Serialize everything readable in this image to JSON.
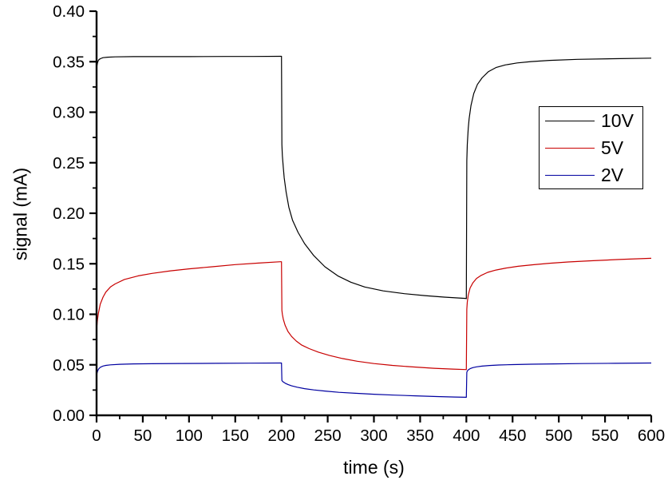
{
  "chart_data": {
    "type": "line",
    "title": "",
    "xlabel": "time (s)",
    "ylabel": "signal (mA)",
    "xlim": [
      0,
      600
    ],
    "ylim": [
      0.0,
      0.4
    ],
    "x_major_ticks": [
      0,
      50,
      100,
      150,
      200,
      250,
      300,
      350,
      400,
      450,
      500,
      550,
      600
    ],
    "x_minor_step": 25,
    "y_major_ticks": [
      0.0,
      0.05,
      0.1,
      0.15,
      0.2,
      0.25,
      0.3,
      0.35,
      0.4
    ],
    "y_minor_step": 0.025,
    "y_tick_decimals": 2,
    "grid": false,
    "axis_color": "#000000",
    "background_color": "#ffffff",
    "legend": {
      "position": "upper right",
      "border": true,
      "entries": [
        {
          "label": "10V",
          "color": "#000000"
        },
        {
          "label": "5V",
          "color": "#c80000"
        },
        {
          "label": "2V",
          "color": "#0000a0"
        }
      ]
    },
    "series": [
      {
        "name": "10V",
        "color": "#000000",
        "points": [
          [
            0,
            0.344
          ],
          [
            1,
            0.349
          ],
          [
            2,
            0.3515
          ],
          [
            4,
            0.353
          ],
          [
            7,
            0.354
          ],
          [
            12,
            0.3545
          ],
          [
            20,
            0.3548
          ],
          [
            40,
            0.355
          ],
          [
            70,
            0.355
          ],
          [
            100,
            0.355
          ],
          [
            140,
            0.3552
          ],
          [
            170,
            0.3552
          ],
          [
            199,
            0.3553
          ],
          [
            200,
            0.3553
          ],
          [
            200.5,
            0.268
          ],
          [
            201,
            0.257
          ],
          [
            202,
            0.245
          ],
          [
            203,
            0.235
          ],
          [
            205,
            0.221
          ],
          [
            208,
            0.206
          ],
          [
            212,
            0.193
          ],
          [
            218,
            0.181
          ],
          [
            225,
            0.17
          ],
          [
            235,
            0.158
          ],
          [
            247,
            0.147
          ],
          [
            261,
            0.138
          ],
          [
            275,
            0.1318
          ],
          [
            290,
            0.127
          ],
          [
            310,
            0.1232
          ],
          [
            333,
            0.1204
          ],
          [
            355,
            0.1185
          ],
          [
            376,
            0.117
          ],
          [
            399,
            0.1157
          ],
          [
            400,
            0.1155
          ],
          [
            400.5,
            0.252
          ],
          [
            401,
            0.268
          ],
          [
            402,
            0.284
          ],
          [
            403,
            0.2935
          ],
          [
            405,
            0.3065
          ],
          [
            408,
            0.3185
          ],
          [
            412,
            0.3275
          ],
          [
            417,
            0.334
          ],
          [
            424,
            0.3402
          ],
          [
            432,
            0.3442
          ],
          [
            442,
            0.3468
          ],
          [
            455,
            0.3488
          ],
          [
            470,
            0.3501
          ],
          [
            490,
            0.3513
          ],
          [
            520,
            0.3523
          ],
          [
            560,
            0.353
          ],
          [
            600,
            0.3535
          ]
        ]
      },
      {
        "name": "5V",
        "color": "#c80000",
        "points": [
          [
            0,
            0.085
          ],
          [
            1,
            0.095
          ],
          [
            2,
            0.101
          ],
          [
            4,
            0.11
          ],
          [
            7,
            0.117
          ],
          [
            10,
            0.122
          ],
          [
            15,
            0.127
          ],
          [
            20,
            0.13
          ],
          [
            30,
            0.1345
          ],
          [
            45,
            0.138
          ],
          [
            60,
            0.1405
          ],
          [
            80,
            0.143
          ],
          [
            100,
            0.145
          ],
          [
            125,
            0.147
          ],
          [
            150,
            0.1492
          ],
          [
            175,
            0.1507
          ],
          [
            199,
            0.152
          ],
          [
            200,
            0.152
          ],
          [
            200.5,
            0.104
          ],
          [
            201,
            0.1
          ],
          [
            202,
            0.095
          ],
          [
            204,
            0.089
          ],
          [
            207,
            0.083
          ],
          [
            211,
            0.078
          ],
          [
            216,
            0.0735
          ],
          [
            222,
            0.0695
          ],
          [
            230,
            0.066
          ],
          [
            240,
            0.0625
          ],
          [
            252,
            0.0592
          ],
          [
            266,
            0.0562
          ],
          [
            282,
            0.0535
          ],
          [
            300,
            0.0512
          ],
          [
            320,
            0.0494
          ],
          [
            342,
            0.0479
          ],
          [
            365,
            0.0466
          ],
          [
            385,
            0.0458
          ],
          [
            399,
            0.0453
          ],
          [
            400,
            0.0452
          ],
          [
            400.5,
            0.105
          ],
          [
            401,
            0.112
          ],
          [
            402,
            0.119
          ],
          [
            404,
            0.126
          ],
          [
            407,
            0.131
          ],
          [
            411,
            0.1355
          ],
          [
            416,
            0.1385
          ],
          [
            423,
            0.1415
          ],
          [
            432,
            0.1438
          ],
          [
            443,
            0.1458
          ],
          [
            456,
            0.1475
          ],
          [
            472,
            0.149
          ],
          [
            490,
            0.1505
          ],
          [
            510,
            0.1518
          ],
          [
            535,
            0.153
          ],
          [
            565,
            0.1542
          ],
          [
            600,
            0.1554
          ]
        ]
      },
      {
        "name": "2V",
        "color": "#0000a0",
        "points": [
          [
            0,
            0.04
          ],
          [
            1,
            0.0435
          ],
          [
            2,
            0.0455
          ],
          [
            4,
            0.0475
          ],
          [
            7,
            0.0488
          ],
          [
            10,
            0.0494
          ],
          [
            15,
            0.05
          ],
          [
            25,
            0.0505
          ],
          [
            40,
            0.0509
          ],
          [
            60,
            0.0511
          ],
          [
            90,
            0.0513
          ],
          [
            130,
            0.0515
          ],
          [
            165,
            0.0516
          ],
          [
            199,
            0.0518
          ],
          [
            200,
            0.0518
          ],
          [
            200.5,
            0.0345
          ],
          [
            201,
            0.0338
          ],
          [
            202,
            0.033
          ],
          [
            204,
            0.0318
          ],
          [
            207,
            0.0305
          ],
          [
            211,
            0.0292
          ],
          [
            217,
            0.0278
          ],
          [
            225,
            0.0264
          ],
          [
            235,
            0.0251
          ],
          [
            247,
            0.024
          ],
          [
            262,
            0.0228
          ],
          [
            280,
            0.0218
          ],
          [
            300,
            0.0209
          ],
          [
            322,
            0.02
          ],
          [
            345,
            0.0193
          ],
          [
            368,
            0.0186
          ],
          [
            388,
            0.0181
          ],
          [
            399,
            0.0179
          ],
          [
            400,
            0.0178
          ],
          [
            400.5,
            0.0425
          ],
          [
            401,
            0.0438
          ],
          [
            402,
            0.045
          ],
          [
            404,
            0.0462
          ],
          [
            407,
            0.0472
          ],
          [
            411,
            0.048
          ],
          [
            417,
            0.0487
          ],
          [
            425,
            0.0493
          ],
          [
            435,
            0.0498
          ],
          [
            450,
            0.0502
          ],
          [
            470,
            0.0506
          ],
          [
            495,
            0.0509
          ],
          [
            525,
            0.0512
          ],
          [
            560,
            0.0515
          ],
          [
            600,
            0.0518
          ]
        ]
      }
    ]
  }
}
